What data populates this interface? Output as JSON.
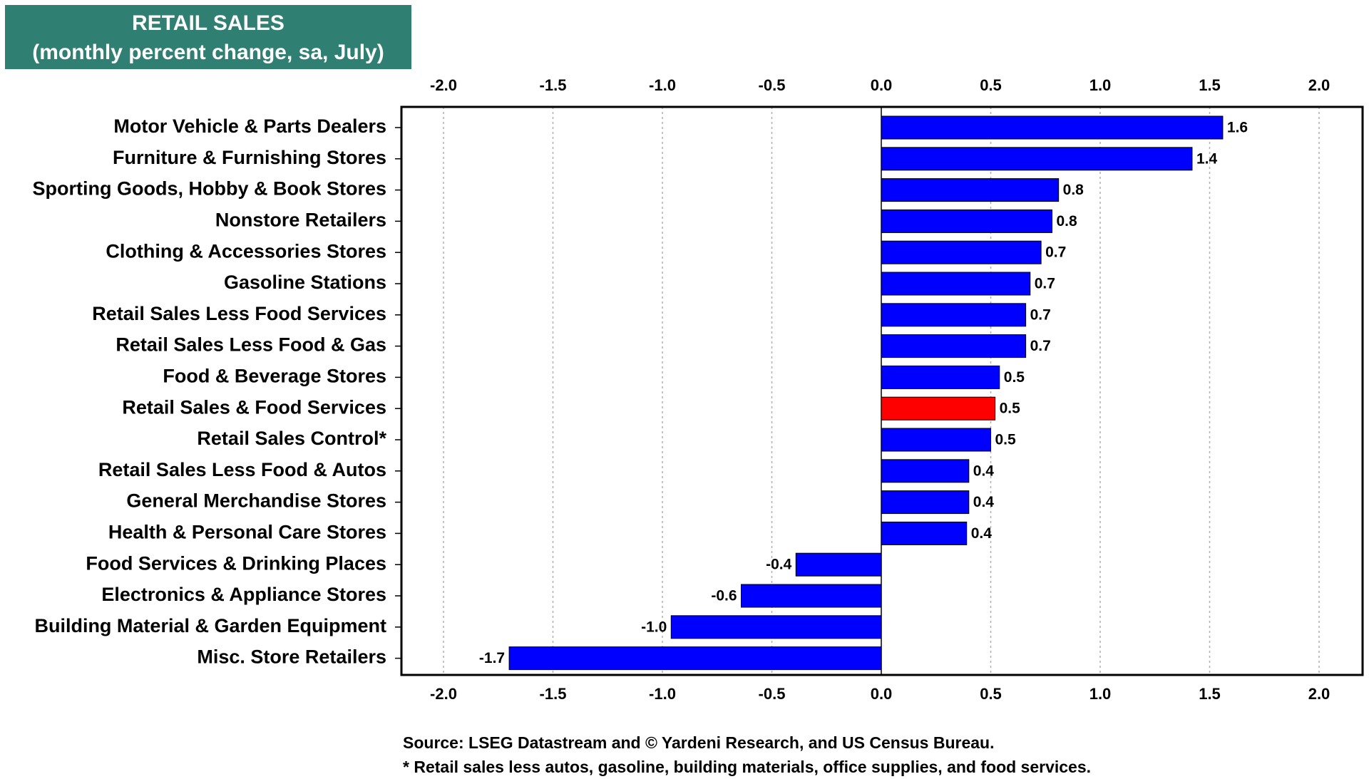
{
  "chart_title": {
    "line1": "RETAIL SALES",
    "line2": "(monthly percent change, sa,  July)"
  },
  "colors": {
    "title_bg": "#2f7f72",
    "bar": "#0000ff",
    "highlight_bar": "#ff0000",
    "grid": "#b0b0b0"
  },
  "chart_data": {
    "type": "bar",
    "orientation": "horizontal",
    "xlim": [
      -2.2,
      2.2
    ],
    "ticks": [
      -2.0,
      -1.5,
      -1.0,
      -0.5,
      0.0,
      0.5,
      1.0,
      1.5,
      2.0
    ],
    "tick_labels": [
      "-2.0",
      "-1.5",
      "-1.0",
      "-0.5",
      "0.0",
      "0.5",
      "1.0",
      "1.5",
      "2.0"
    ],
    "grid": true,
    "categories": [
      "Motor Vehicle & Parts Dealers",
      "Furniture & Furnishing Stores",
      "Sporting Goods, Hobby & Book Stores",
      "Nonstore Retailers",
      "Clothing & Accessories Stores",
      "Gasoline Stations",
      "Retail Sales Less Food Services",
      "Retail Sales Less Food & Gas",
      "Food & Beverage Stores",
      "Retail Sales & Food Services",
      "Retail Sales Control*",
      "Retail Sales Less Food & Autos",
      "General Merchandise Stores",
      "Health & Personal Care Stores",
      "Food Services & Drinking Places",
      "Electronics & Appliance Stores",
      "Building Material & Garden Equipment",
      "Misc. Store Retailers"
    ],
    "values": [
      1.56,
      1.42,
      0.81,
      0.78,
      0.73,
      0.68,
      0.66,
      0.66,
      0.54,
      0.52,
      0.5,
      0.4,
      0.4,
      0.39,
      -0.39,
      -0.64,
      -0.96,
      -1.7
    ],
    "value_labels": [
      "1.6",
      "1.4",
      "0.8",
      "0.8",
      "0.7",
      "0.7",
      "0.7",
      "0.7",
      "0.5",
      "0.5",
      "0.5",
      "0.4",
      "0.4",
      "0.4",
      "-0.4",
      "-0.6",
      "-1.0",
      "-1.7"
    ],
    "highlight_index": 9
  },
  "footnotes": {
    "source": "Source: LSEG Datastream and © Yardeni Research, and US Census Bureau.",
    "note": "* Retail sales less autos, gasoline, building materials, office supplies, and food services."
  }
}
